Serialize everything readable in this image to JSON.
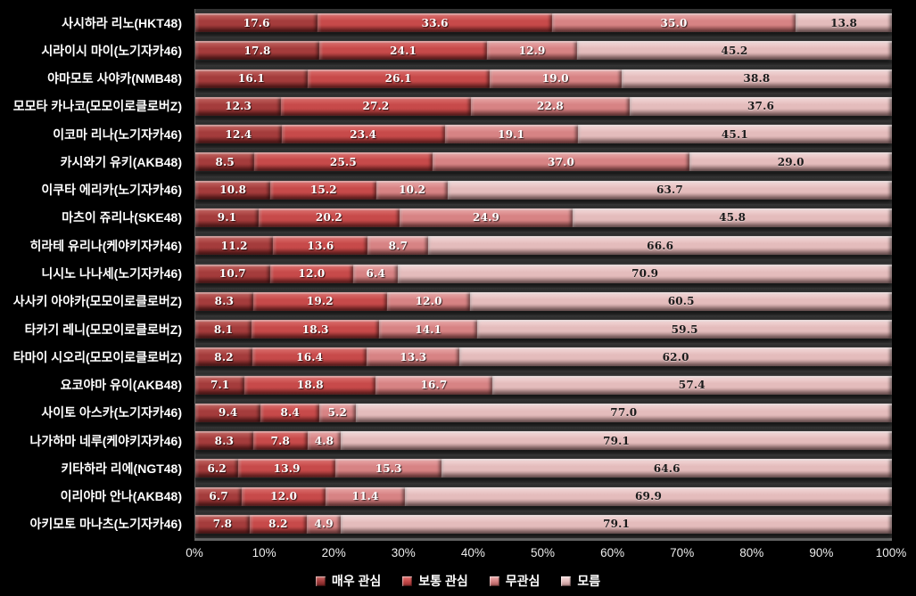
{
  "chart_data": {
    "type": "bar",
    "orientation": "horizontal-stacked",
    "title": "",
    "xlabel": "",
    "ylabel": "",
    "xlim": [
      0,
      100
    ],
    "grid": false,
    "legend_position": "bottom",
    "value_labels": "inside",
    "background": "#000000",
    "plot_background": "#3C3C3C",
    "x_ticks": [
      "0%",
      "10%",
      "20%",
      "30%",
      "40%",
      "50%",
      "60%",
      "70%",
      "80%",
      "90%",
      "100%"
    ],
    "categories": [
      "사시하라 리노(HKT48)",
      "시라이시 마이(노기자카46)",
      "야마모토 사야카(NMB48)",
      "모모타 카나코(모모이로클로버Z)",
      "이코마 리나(노기자카46)",
      "카시와기 유키(AKB48)",
      "이쿠타 에리카(노기자카46)",
      "마츠이 쥬리나(SKE48)",
      "히라테 유리나(케야키자카46)",
      "니시노 나나세(노기자카46)",
      "사사키 아야카(모모이로클로버Z)",
      "타카기 레니(모모이로클로버Z)",
      "타마이 시오리(모모이로클로버Z)",
      "요코야마 유이(AKB48)",
      "사이토 아스카(노기자카46)",
      "나가하마 네루(케야키자카46)",
      "키타하라 리에(NGT48)",
      "이리야마 안나(AKB48)",
      "아키모토 마나츠(노기자카46)"
    ],
    "series": [
      {
        "name": "매우 관심",
        "color": "#A43C3C",
        "color_light": "#C66A66",
        "color_dark": "#6E1F1F",
        "text_color": "#FFFFFF",
        "values": [
          17.6,
          17.8,
          16.1,
          12.3,
          12.4,
          8.5,
          10.8,
          9.1,
          11.2,
          10.7,
          8.3,
          8.1,
          8.2,
          7.1,
          9.4,
          8.3,
          6.2,
          6.7,
          7.8
        ]
      },
      {
        "name": "보통 관심",
        "color": "#C74A4A",
        "color_light": "#DF7573",
        "color_dark": "#8C2B2B",
        "text_color": "#FFFFFF",
        "values": [
          33.6,
          24.1,
          26.1,
          27.2,
          23.4,
          25.5,
          15.2,
          20.2,
          13.6,
          12.0,
          19.2,
          18.3,
          16.4,
          18.8,
          8.4,
          7.8,
          13.9,
          12.0,
          8.2
        ]
      },
      {
        "name": "무관심",
        "color": "#D78384",
        "color_light": "#EAACAC",
        "color_dark": "#A05252",
        "text_color": "#FFFFFF",
        "values": [
          35.0,
          12.9,
          19.0,
          22.8,
          19.1,
          37.0,
          10.2,
          24.9,
          8.7,
          6.4,
          12.0,
          14.1,
          13.3,
          16.7,
          5.2,
          4.8,
          15.3,
          11.4,
          4.9
        ]
      },
      {
        "name": "모름",
        "color": "#E4BCBC",
        "color_light": "#F4DCDC",
        "color_dark": "#B18484",
        "text_color": "#1A1A1A",
        "values": [
          13.8,
          45.2,
          38.8,
          37.6,
          45.1,
          29.0,
          63.7,
          45.8,
          66.6,
          70.9,
          60.5,
          59.5,
          62.0,
          57.4,
          77.0,
          79.1,
          64.6,
          69.9,
          79.1
        ]
      }
    ]
  }
}
